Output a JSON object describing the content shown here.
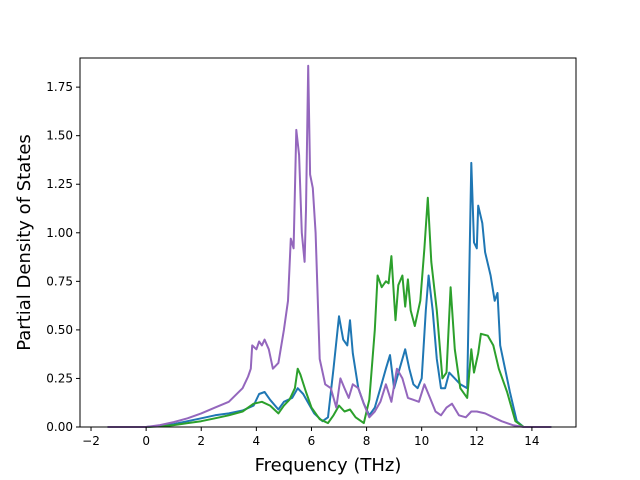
{
  "chart_data": {
    "type": "line",
    "title": "",
    "xlabel": "Frequency (THz)",
    "ylabel": "Partial Density of States",
    "xlim": [
      -2.4,
      15.6
    ],
    "ylim": [
      0,
      1.9
    ],
    "xticks": [
      -2,
      0,
      2,
      4,
      6,
      8,
      10,
      12,
      14
    ],
    "xtick_labels": [
      "−2",
      "0",
      "2",
      "4",
      "6",
      "8",
      "10",
      "12",
      "14"
    ],
    "yticks": [
      0,
      0.25,
      0.5,
      0.75,
      1.0,
      1.25,
      1.5,
      1.75
    ],
    "ytick_labels": [
      "0.00",
      "0.25",
      "0.50",
      "0.75",
      "1.00",
      "1.25",
      "1.50",
      "1.75"
    ],
    "grid": false,
    "legend": "none",
    "series": [
      {
        "color": "#1f77b4",
        "points": [
          [
            -1.4,
            0
          ],
          [
            0,
            0
          ],
          [
            0.5,
            0.005
          ],
          [
            1,
            0.015
          ],
          [
            1.5,
            0.03
          ],
          [
            2,
            0.045
          ],
          [
            2.5,
            0.06
          ],
          [
            3,
            0.07
          ],
          [
            3.5,
            0.085
          ],
          [
            3.9,
            0.11
          ],
          [
            4.1,
            0.17
          ],
          [
            4.3,
            0.18
          ],
          [
            4.5,
            0.14
          ],
          [
            4.8,
            0.09
          ],
          [
            5,
            0.13
          ],
          [
            5.3,
            0.15
          ],
          [
            5.5,
            0.2
          ],
          [
            5.7,
            0.17
          ],
          [
            5.9,
            0.12
          ],
          [
            6.1,
            0.07
          ],
          [
            6.4,
            0.03
          ],
          [
            6.6,
            0.05
          ],
          [
            6.8,
            0.3
          ],
          [
            7,
            0.57
          ],
          [
            7.15,
            0.45
          ],
          [
            7.3,
            0.42
          ],
          [
            7.4,
            0.55
          ],
          [
            7.5,
            0.38
          ],
          [
            7.7,
            0.2
          ],
          [
            7.9,
            0.12
          ],
          [
            8.1,
            0.06
          ],
          [
            8.3,
            0.1
          ],
          [
            8.5,
            0.2
          ],
          [
            8.7,
            0.3
          ],
          [
            8.85,
            0.37
          ],
          [
            9,
            0.2
          ],
          [
            9.2,
            0.3
          ],
          [
            9.4,
            0.4
          ],
          [
            9.55,
            0.3
          ],
          [
            9.7,
            0.22
          ],
          [
            9.85,
            0.2
          ],
          [
            10,
            0.25
          ],
          [
            10.15,
            0.6
          ],
          [
            10.25,
            0.78
          ],
          [
            10.4,
            0.6
          ],
          [
            10.55,
            0.35
          ],
          [
            10.7,
            0.2
          ],
          [
            10.85,
            0.2
          ],
          [
            11,
            0.28
          ],
          [
            11.2,
            0.25
          ],
          [
            11.4,
            0.22
          ],
          [
            11.65,
            0.2
          ],
          [
            11.8,
            1.36
          ],
          [
            11.9,
            0.95
          ],
          [
            12,
            0.92
          ],
          [
            12.05,
            1.14
          ],
          [
            12.2,
            1.05
          ],
          [
            12.3,
            0.9
          ],
          [
            12.5,
            0.78
          ],
          [
            12.65,
            0.65
          ],
          [
            12.75,
            0.69
          ],
          [
            12.85,
            0.42
          ],
          [
            13.2,
            0.18
          ],
          [
            13.45,
            0.03
          ],
          [
            13.7,
            0
          ],
          [
            14.7,
            0
          ]
        ]
      },
      {
        "color": "#2ca02c",
        "points": [
          [
            -1.4,
            0
          ],
          [
            0,
            0
          ],
          [
            0.5,
            0.003
          ],
          [
            1,
            0.01
          ],
          [
            1.5,
            0.02
          ],
          [
            2,
            0.03
          ],
          [
            2.5,
            0.045
          ],
          [
            3,
            0.06
          ],
          [
            3.5,
            0.08
          ],
          [
            3.9,
            0.12
          ],
          [
            4.2,
            0.13
          ],
          [
            4.5,
            0.11
          ],
          [
            4.8,
            0.07
          ],
          [
            5,
            0.11
          ],
          [
            5.2,
            0.14
          ],
          [
            5.4,
            0.2
          ],
          [
            5.5,
            0.3
          ],
          [
            5.6,
            0.27
          ],
          [
            5.8,
            0.18
          ],
          [
            6,
            0.1
          ],
          [
            6.3,
            0.04
          ],
          [
            6.6,
            0.02
          ],
          [
            6.8,
            0.06
          ],
          [
            7,
            0.11
          ],
          [
            7.2,
            0.08
          ],
          [
            7.4,
            0.09
          ],
          [
            7.6,
            0.05
          ],
          [
            7.9,
            0.02
          ],
          [
            8.1,
            0.14
          ],
          [
            8.3,
            0.5
          ],
          [
            8.4,
            0.78
          ],
          [
            8.55,
            0.72
          ],
          [
            8.7,
            0.75
          ],
          [
            8.8,
            0.74
          ],
          [
            8.9,
            0.88
          ],
          [
            9.05,
            0.55
          ],
          [
            9.15,
            0.73
          ],
          [
            9.3,
            0.78
          ],
          [
            9.4,
            0.62
          ],
          [
            9.5,
            0.76
          ],
          [
            9.6,
            0.6
          ],
          [
            9.75,
            0.52
          ],
          [
            9.95,
            0.65
          ],
          [
            10.1,
            0.92
          ],
          [
            10.22,
            1.18
          ],
          [
            10.35,
            0.85
          ],
          [
            10.55,
            0.6
          ],
          [
            10.75,
            0.25
          ],
          [
            10.9,
            0.28
          ],
          [
            11.05,
            0.72
          ],
          [
            11.2,
            0.4
          ],
          [
            11.4,
            0.2
          ],
          [
            11.65,
            0.15
          ],
          [
            11.8,
            0.4
          ],
          [
            11.9,
            0.28
          ],
          [
            12.05,
            0.38
          ],
          [
            12.15,
            0.48
          ],
          [
            12.4,
            0.47
          ],
          [
            12.6,
            0.42
          ],
          [
            12.8,
            0.3
          ],
          [
            13.1,
            0.18
          ],
          [
            13.4,
            0.03
          ],
          [
            13.7,
            0
          ],
          [
            14.7,
            0
          ]
        ]
      },
      {
        "color": "#9467bd",
        "points": [
          [
            -1.4,
            0
          ],
          [
            0,
            0
          ],
          [
            0.5,
            0.01
          ],
          [
            1,
            0.025
          ],
          [
            1.5,
            0.045
          ],
          [
            2,
            0.07
          ],
          [
            2.5,
            0.1
          ],
          [
            3,
            0.13
          ],
          [
            3.5,
            0.2
          ],
          [
            3.7,
            0.26
          ],
          [
            3.8,
            0.3
          ],
          [
            3.85,
            0.42
          ],
          [
            4,
            0.4
          ],
          [
            4.1,
            0.44
          ],
          [
            4.2,
            0.42
          ],
          [
            4.3,
            0.45
          ],
          [
            4.45,
            0.4
          ],
          [
            4.6,
            0.3
          ],
          [
            4.8,
            0.33
          ],
          [
            5,
            0.5
          ],
          [
            5.15,
            0.65
          ],
          [
            5.25,
            0.97
          ],
          [
            5.35,
            0.92
          ],
          [
            5.45,
            1.53
          ],
          [
            5.55,
            1.4
          ],
          [
            5.65,
            1.0
          ],
          [
            5.75,
            0.85
          ],
          [
            5.8,
            1.12
          ],
          [
            5.88,
            1.86
          ],
          [
            5.95,
            1.3
          ],
          [
            6.05,
            1.23
          ],
          [
            6.15,
            1.0
          ],
          [
            6.3,
            0.35
          ],
          [
            6.5,
            0.22
          ],
          [
            6.7,
            0.2
          ],
          [
            6.9,
            0.1
          ],
          [
            7.05,
            0.25
          ],
          [
            7.2,
            0.2
          ],
          [
            7.35,
            0.15
          ],
          [
            7.5,
            0.22
          ],
          [
            7.7,
            0.2
          ],
          [
            7.9,
            0.12
          ],
          [
            8.1,
            0.05
          ],
          [
            8.3,
            0.08
          ],
          [
            8.5,
            0.13
          ],
          [
            8.7,
            0.22
          ],
          [
            8.9,
            0.13
          ],
          [
            9.1,
            0.3
          ],
          [
            9.3,
            0.25
          ],
          [
            9.5,
            0.15
          ],
          [
            9.7,
            0.14
          ],
          [
            9.9,
            0.13
          ],
          [
            10.1,
            0.22
          ],
          [
            10.3,
            0.15
          ],
          [
            10.5,
            0.08
          ],
          [
            10.7,
            0.06
          ],
          [
            10.9,
            0.1
          ],
          [
            11.1,
            0.12
          ],
          [
            11.35,
            0.06
          ],
          [
            11.6,
            0.05
          ],
          [
            11.8,
            0.08
          ],
          [
            12,
            0.08
          ],
          [
            12.3,
            0.07
          ],
          [
            12.6,
            0.05
          ],
          [
            12.9,
            0.03
          ],
          [
            13.3,
            0.01
          ],
          [
            13.7,
            0
          ],
          [
            14.7,
            0
          ]
        ]
      }
    ]
  }
}
